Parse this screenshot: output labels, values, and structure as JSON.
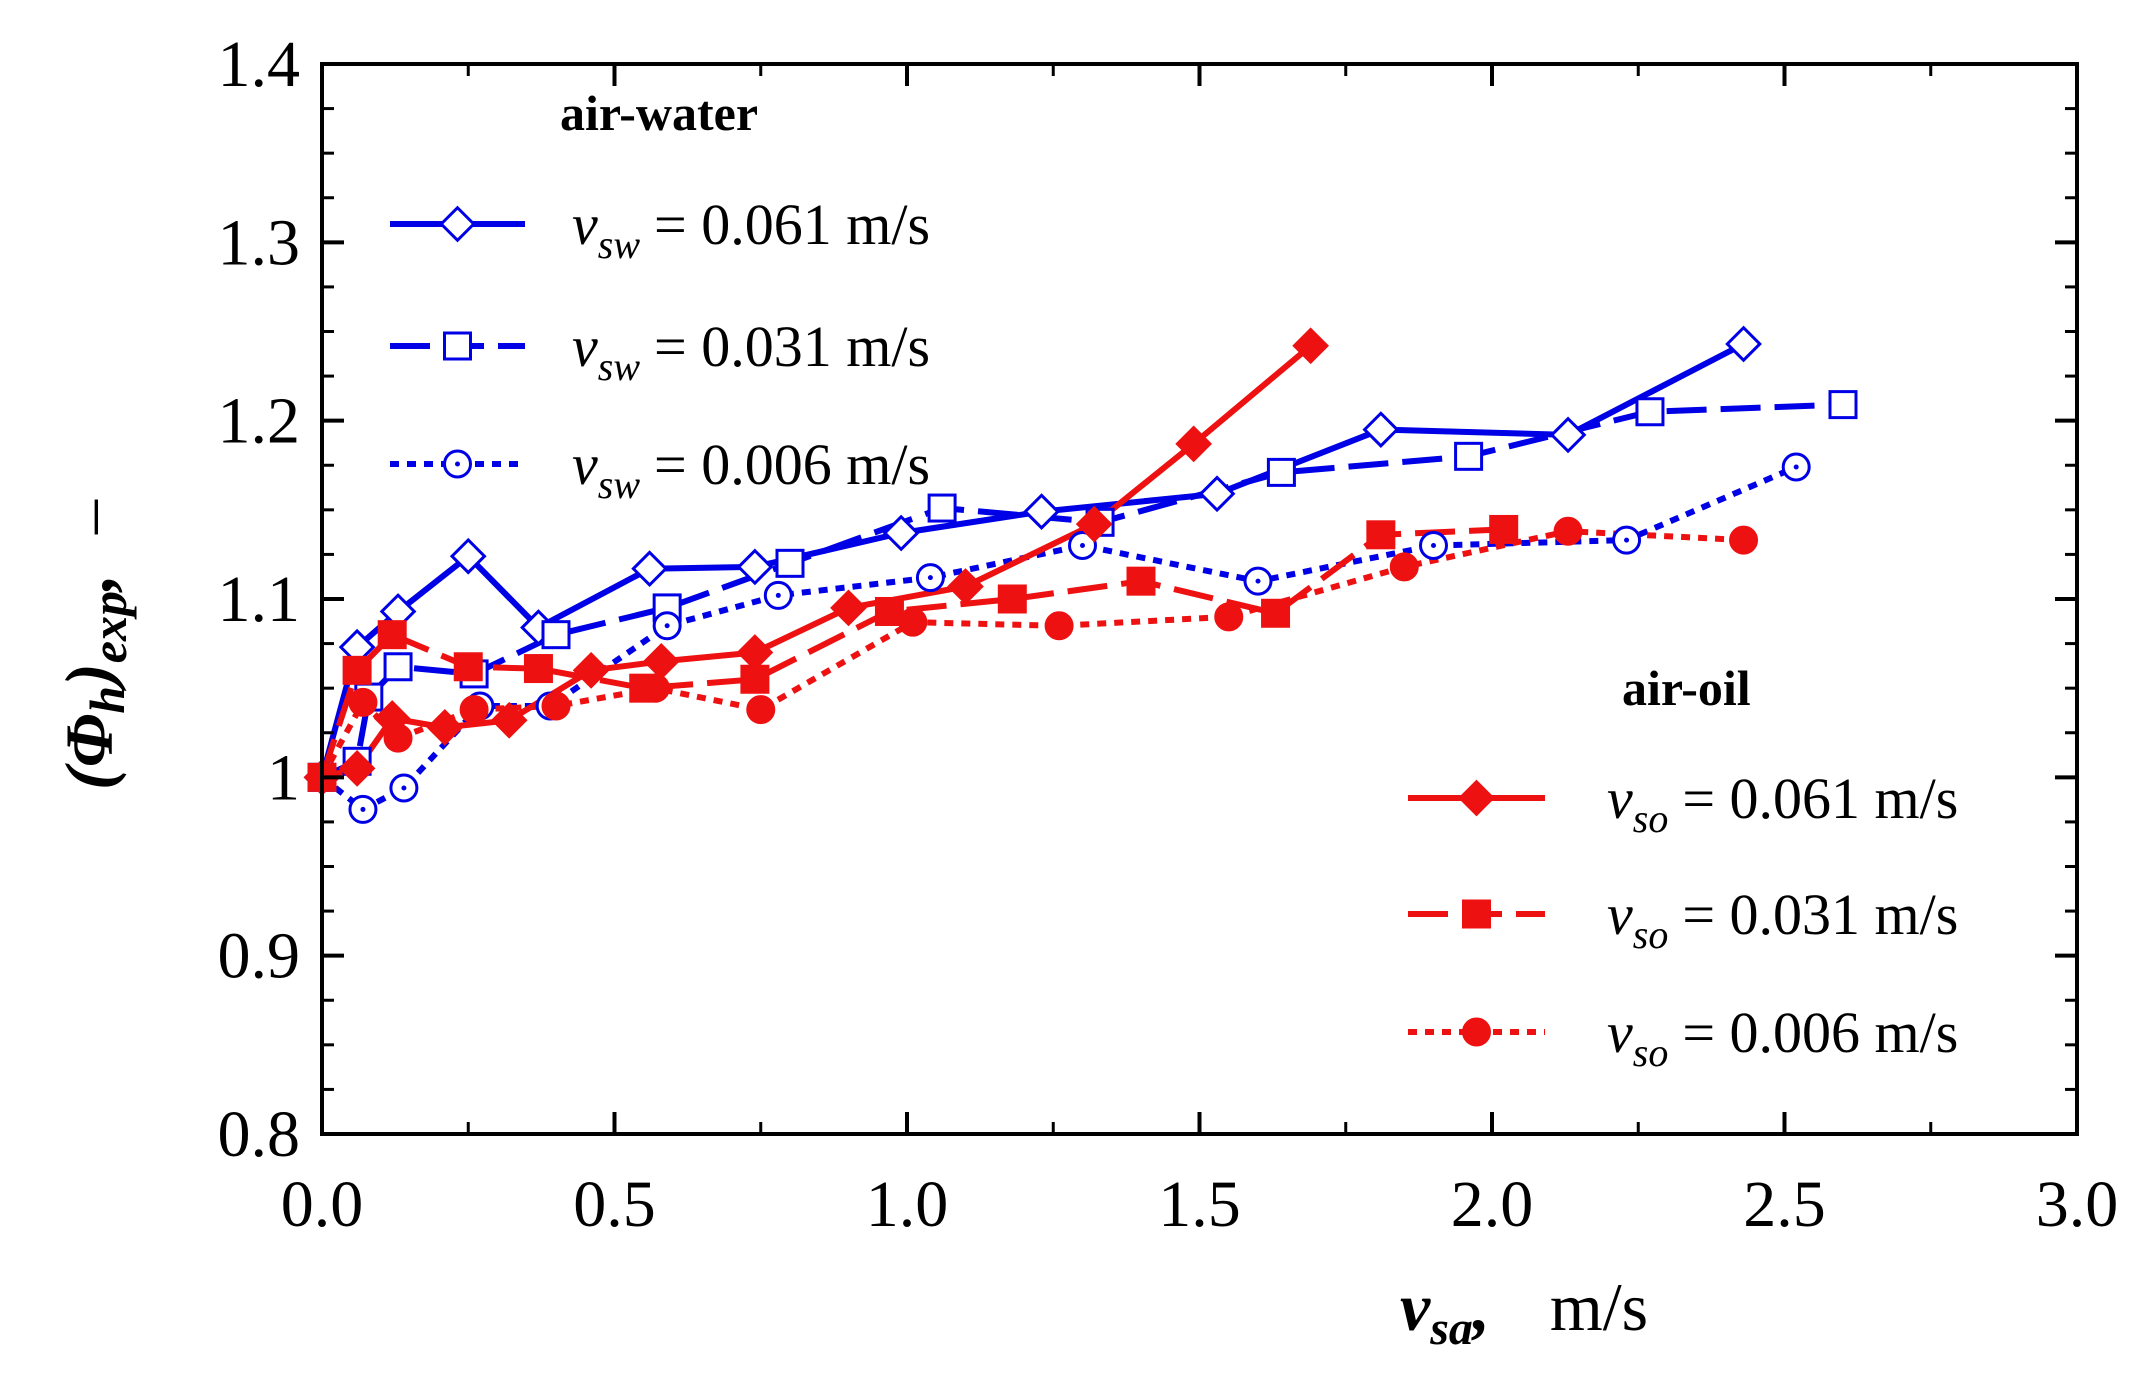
{
  "chart_data": {
    "type": "line",
    "xlabel": {
      "main": "v",
      "sub": "sa",
      "sep": ",",
      "unit": "m/s"
    },
    "ylabel": {
      "open": "(",
      "main": "Φ",
      "sub1": "h",
      "close": ")",
      "sub2": "exp",
      "sep": ",",
      "unit": "–"
    },
    "xlim": [
      0.0,
      3.0
    ],
    "ylim": [
      0.8,
      1.4
    ],
    "xticks": [
      "0.0",
      "0.5",
      "1.0",
      "1.5",
      "2.0",
      "2.5",
      "3.0"
    ],
    "yticks": [
      "0.8",
      "0.9",
      "1",
      "1.1",
      "1.2",
      "1.3",
      "1.4"
    ],
    "grid": false,
    "legends": [
      {
        "title": "air-water",
        "position": "top-left",
        "entries": [
          {
            "var": "v",
            "sub": "sw",
            "text": "= 0.061 m/s"
          },
          {
            "var": "v",
            "sub": "sw",
            "text": "= 0.031 m/s"
          },
          {
            "var": "v",
            "sub": "sw",
            "text": "= 0.006 m/s"
          }
        ]
      },
      {
        "title": "air-oil",
        "position": "bottom-right",
        "entries": [
          {
            "var": "v",
            "sub": "so",
            "text": "= 0.061 m/s"
          },
          {
            "var": "v",
            "sub": "so",
            "text": "= 0.031 m/s"
          },
          {
            "var": "v",
            "sub": "so",
            "text": "= 0.006 m/s"
          }
        ]
      }
    ],
    "series": [
      {
        "name": "air-water v_sw = 0.061 m/s",
        "color": "#0000e6",
        "dash": "solid",
        "marker": "diamond",
        "filled": false,
        "legend_group": 0,
        "x": [
          0.0,
          0.06,
          0.13,
          0.25,
          0.37,
          0.56,
          0.74,
          0.99,
          1.23,
          1.53,
          1.81,
          2.13,
          2.43
        ],
        "y": [
          1.0,
          1.073,
          1.093,
          1.124,
          1.084,
          1.117,
          1.118,
          1.137,
          1.149,
          1.159,
          1.195,
          1.192,
          1.243
        ]
      },
      {
        "name": "air-water v_sw = 0.031 m/s",
        "color": "#0000e6",
        "dash": "dashed",
        "marker": "square",
        "filled": false,
        "legend_group": 0,
        "x": [
          0.0,
          0.06,
          0.08,
          0.13,
          0.26,
          0.4,
          0.59,
          0.8,
          1.06,
          1.33,
          1.64,
          1.96,
          2.27,
          2.6
        ],
        "y": [
          1.0,
          1.009,
          1.045,
          1.062,
          1.058,
          1.08,
          1.095,
          1.12,
          1.151,
          1.143,
          1.171,
          1.18,
          1.205,
          1.209
        ]
      },
      {
        "name": "air-water v_sw = 0.006 m/s",
        "color": "#0000e6",
        "dash": "dotted",
        "marker": "circle",
        "filled": false,
        "legend_group": 0,
        "x": [
          0.0,
          0.07,
          0.14,
          0.27,
          0.39,
          0.59,
          0.78,
          1.04,
          1.3,
          1.6,
          1.9,
          2.23,
          2.52
        ],
        "y": [
          1.0,
          0.982,
          0.994,
          1.04,
          1.04,
          1.085,
          1.102,
          1.112,
          1.13,
          1.11,
          1.13,
          1.133,
          1.174
        ]
      },
      {
        "name": "air-oil v_so = 0.061 m/s",
        "color": "#ee1111",
        "dash": "solid",
        "marker": "diamond",
        "filled": true,
        "legend_group": 1,
        "x": [
          0.0,
          0.06,
          0.12,
          0.21,
          0.32,
          0.46,
          0.58,
          0.74,
          0.9,
          1.1,
          1.32,
          1.49,
          1.69
        ],
        "y": [
          1.0,
          1.005,
          1.033,
          1.028,
          1.032,
          1.06,
          1.065,
          1.07,
          1.095,
          1.107,
          1.142,
          1.187,
          1.242
        ]
      },
      {
        "name": "air-oil v_so = 0.031 m/s",
        "color": "#ee1111",
        "dash": "dashed",
        "marker": "square",
        "filled": true,
        "legend_group": 1,
        "x": [
          0.0,
          0.06,
          0.12,
          0.25,
          0.37,
          0.55,
          0.74,
          0.97,
          1.18,
          1.4,
          1.63,
          1.81,
          2.02
        ],
        "y": [
          1.0,
          1.06,
          1.08,
          1.062,
          1.061,
          1.05,
          1.055,
          1.093,
          1.1,
          1.11,
          1.092,
          1.136,
          1.139
        ]
      },
      {
        "name": "air-oil v_so = 0.006 m/s",
        "color": "#ee1111",
        "dash": "dotted",
        "marker": "circle",
        "filled": true,
        "legend_group": 1,
        "x": [
          0.0,
          0.07,
          0.13,
          0.26,
          0.4,
          0.57,
          0.75,
          1.01,
          1.26,
          1.55,
          1.85,
          2.13,
          2.43
        ],
        "y": [
          1.0,
          1.042,
          1.022,
          1.038,
          1.04,
          1.05,
          1.038,
          1.087,
          1.085,
          1.09,
          1.118,
          1.138,
          1.133
        ]
      }
    ]
  }
}
